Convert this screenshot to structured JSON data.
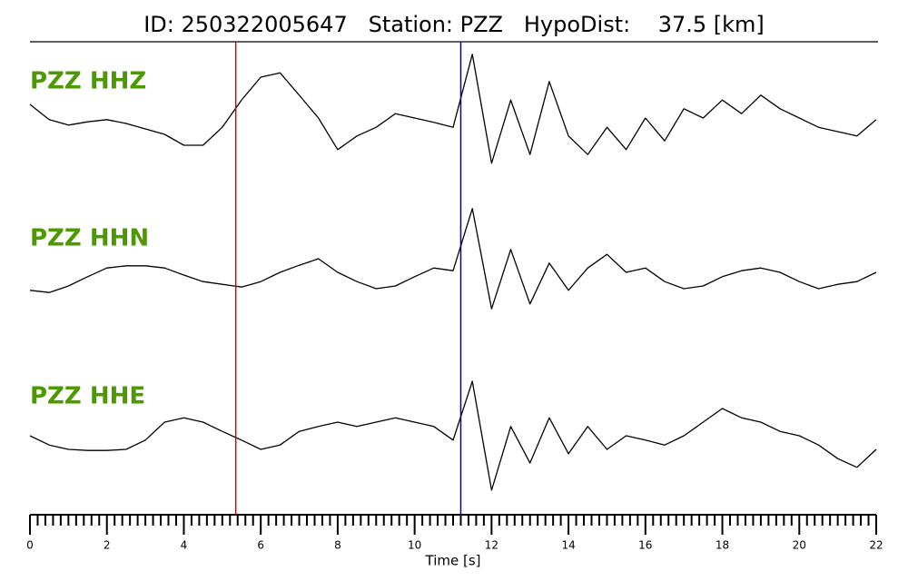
{
  "chart_data": {
    "type": "line",
    "title": "ID: 250322005647   Station: PZZ   HypoDist:    37.5 [km]",
    "x_label": "Time [s]",
    "xlim": [
      0,
      22
    ],
    "xticks": [
      0,
      2,
      4,
      6,
      8,
      10,
      12,
      14,
      16,
      18,
      20,
      22
    ],
    "xminorticks": [
      0.2,
      0.4,
      0.6,
      0.8,
      1,
      1.2,
      1.4,
      1.6,
      1.8,
      2.2,
      2.4,
      2.6,
      2.8,
      3,
      3.2,
      3.4,
      3.6,
      3.8,
      4.2,
      4.4,
      4.6,
      4.8,
      5,
      5.2,
      5.4,
      5.6,
      5.8,
      6.2,
      6.4,
      6.6,
      6.8,
      7,
      7.2,
      7.4,
      7.6,
      7.8,
      8.2,
      8.4,
      8.6,
      8.8,
      9,
      9.2,
      9.4,
      9.6,
      9.8,
      10.2,
      10.4,
      10.6,
      10.8,
      11,
      11.2,
      11.4,
      11.6,
      11.8,
      12.2,
      12.4,
      12.6,
      12.8,
      13,
      13.2,
      13.4,
      13.6,
      13.8,
      14.2,
      14.4,
      14.6,
      14.8,
      15,
      15.2,
      15.4,
      15.6,
      15.8,
      16.2,
      16.4,
      16.6,
      16.8,
      17,
      17.2,
      17.4,
      17.6,
      17.8,
      18.2,
      18.4,
      18.6,
      18.8,
      19,
      19.2,
      19.4,
      19.6,
      19.8,
      20.2,
      20.4,
      20.6,
      20.8,
      21,
      21.2,
      21.4,
      21.6,
      21.8
    ],
    "x": [
      0,
      0.5,
      1,
      1.5,
      2,
      2.5,
      3,
      3.5,
      4,
      4.5,
      5,
      5.5,
      6,
      6.5,
      7,
      7.5,
      8,
      8.5,
      9,
      9.5,
      10,
      10.5,
      11,
      11.5,
      12,
      12.5,
      13,
      13.5,
      14,
      14.5,
      15,
      15.5,
      16,
      16.5,
      17,
      17.5,
      18,
      18.5,
      19,
      19.5,
      20,
      20.5,
      21,
      21.5,
      22
    ],
    "series": [
      {
        "name": "PZZ HHZ",
        "color": "#000000",
        "values": [
          0.25,
          -0.03,
          -0.13,
          -0.07,
          -0.03,
          -0.1,
          -0.2,
          -0.3,
          -0.5,
          -0.5,
          -0.17,
          0.33,
          0.75,
          0.83,
          0.42,
          0,
          -0.58,
          -0.33,
          -0.17,
          0.08,
          0,
          -0.08,
          -0.17,
          1.17,
          -0.83,
          0.33,
          -0.67,
          0.67,
          -0.33,
          -0.67,
          -0.17,
          -0.58,
          0,
          -0.42,
          0.17,
          0,
          0.33,
          0.08,
          0.42,
          0.17,
          0,
          -0.17,
          -0.25,
          -0.33,
          -0.03
        ]
      },
      {
        "name": "PZZ HHN",
        "color": "#000000",
        "values": [
          -0.33,
          -0.37,
          -0.25,
          -0.08,
          0.08,
          0.12,
          0.12,
          0.08,
          -0.05,
          -0.17,
          -0.22,
          -0.27,
          -0.17,
          0,
          0.13,
          0.25,
          0,
          -0.17,
          -0.3,
          -0.25,
          -0.08,
          0.08,
          0.03,
          1.17,
          -0.67,
          0.42,
          -0.58,
          0.17,
          -0.33,
          0.08,
          0.33,
          0,
          0.08,
          -0.17,
          -0.3,
          -0.25,
          -0.08,
          0.03,
          0.08,
          0,
          -0.17,
          -0.3,
          -0.22,
          -0.17,
          0
        ]
      },
      {
        "name": "PZZ HHE",
        "color": "#000000",
        "values": [
          0,
          -0.17,
          -0.25,
          -0.27,
          -0.27,
          -0.25,
          -0.08,
          0.25,
          0.33,
          0.25,
          0.08,
          -0.08,
          -0.25,
          -0.17,
          0.08,
          0.17,
          0.25,
          0.17,
          0.25,
          0.33,
          0.25,
          0.17,
          -0.08,
          1,
          -1,
          0.17,
          -0.5,
          0.33,
          -0.33,
          0.17,
          -0.25,
          0,
          -0.08,
          -0.17,
          0,
          0.25,
          0.5,
          0.33,
          0.25,
          0.08,
          0,
          -0.17,
          -0.42,
          -0.58,
          -0.25
        ]
      }
    ],
    "picks": [
      {
        "time": 5.35,
        "color": "#e00000"
      },
      {
        "time": 11.2,
        "color": "#0000c0"
      }
    ]
  }
}
